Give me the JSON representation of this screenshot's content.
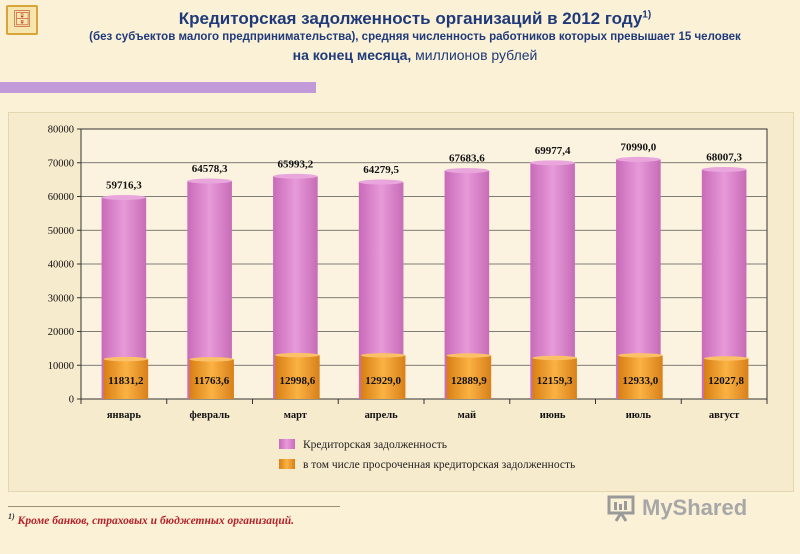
{
  "header": {
    "title": "Кредиторская задолженность организаций в 2012 году",
    "title_note": "1)",
    "subtitle": "(без субъектов малого предпринимательства), средняя численность работников которых превышает 15 человек",
    "period": "на конец месяца,",
    "unit": "миллионов рублей"
  },
  "footnote": {
    "mark": "1)",
    "text": "Кроме банков, страховых и бюджетных организаций."
  },
  "watermark": {
    "brand": "MyShared"
  },
  "colors": {
    "series_total": "#d982c9",
    "series_overdue": "#f39a26",
    "accent_bar": "#c39ad9",
    "title": "#1f3a7a"
  },
  "chart_data": {
    "type": "bar",
    "categories": [
      "январь",
      "февраль",
      "март",
      "апрель",
      "май",
      "июнь",
      "июль",
      "август"
    ],
    "series": [
      {
        "name": "Кредиторская задолженность",
        "values": [
          59716.3,
          64578.3,
          65993.2,
          64279.5,
          67683.6,
          69977.4,
          70990.0,
          68007.3
        ],
        "labels": [
          "59716,3",
          "64578,3",
          "65993,2",
          "64279,5",
          "67683,6",
          "69977,4",
          "70990,0",
          "68007,3"
        ]
      },
      {
        "name": "в том числе просроченная кредиторская задолженность",
        "values": [
          11831.2,
          11763.6,
          12998.6,
          12929.0,
          12889.9,
          12159.3,
          12933.0,
          12027.8
        ],
        "labels": [
          "11831,2",
          "11763,6",
          "12998,6",
          "12929,0",
          "12889,9",
          "12159,3",
          "12933,0",
          "12027,8"
        ]
      }
    ],
    "ylim": [
      0,
      80000
    ],
    "yticks": [
      "0",
      "10000",
      "20000",
      "30000",
      "40000",
      "50000",
      "60000",
      "70000",
      "80000"
    ],
    "grid": true,
    "legend": "bottom-center"
  }
}
